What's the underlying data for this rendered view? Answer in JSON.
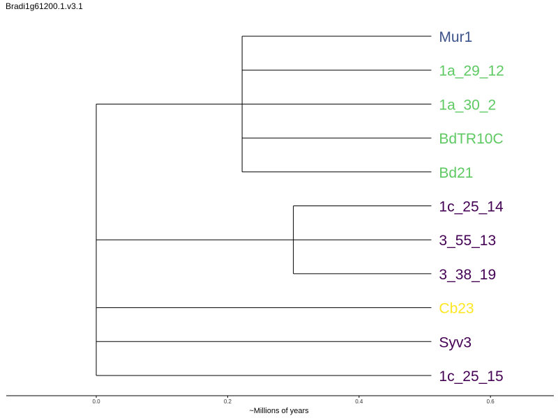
{
  "title": "Bradi1g61200.1.v3.1",
  "chart_data": {
    "type": "dendrogram",
    "xlabel": "~Millions of years",
    "xticks": [
      0.0,
      0.2,
      0.4,
      0.6
    ],
    "xtick_labels": [
      "0.0",
      "0.2",
      "0.4",
      "0.6"
    ],
    "xlim": [
      -0.138,
      0.696
    ],
    "leaves": [
      {
        "name": "Mur1",
        "color": "#3b528b"
      },
      {
        "name": "1a_29_12",
        "color": "#5ec962"
      },
      {
        "name": "1a_30_2",
        "color": "#5ec962"
      },
      {
        "name": "BdTR10C",
        "color": "#5ec962"
      },
      {
        "name": "Bd21",
        "color": "#5ec962"
      },
      {
        "name": "1c_25_14",
        "color": "#440154"
      },
      {
        "name": "3_55_13",
        "color": "#440154"
      },
      {
        "name": "3_38_19",
        "color": "#440154"
      },
      {
        "name": "Cb23",
        "color": "#fde725"
      },
      {
        "name": "Syv3",
        "color": "#440154"
      },
      {
        "name": "1c_25_15",
        "color": "#440154"
      }
    ],
    "leaf_depth": 0.51,
    "clades": [
      {
        "members": [
          0,
          1,
          2,
          3,
          4
        ],
        "node_depth": 0.222
      },
      {
        "members": [
          5,
          6,
          7
        ],
        "node_depth": 0.3
      }
    ],
    "root": {
      "members": [
        0,
        5,
        8,
        9,
        10
      ],
      "node_depth": 0.0
    }
  }
}
